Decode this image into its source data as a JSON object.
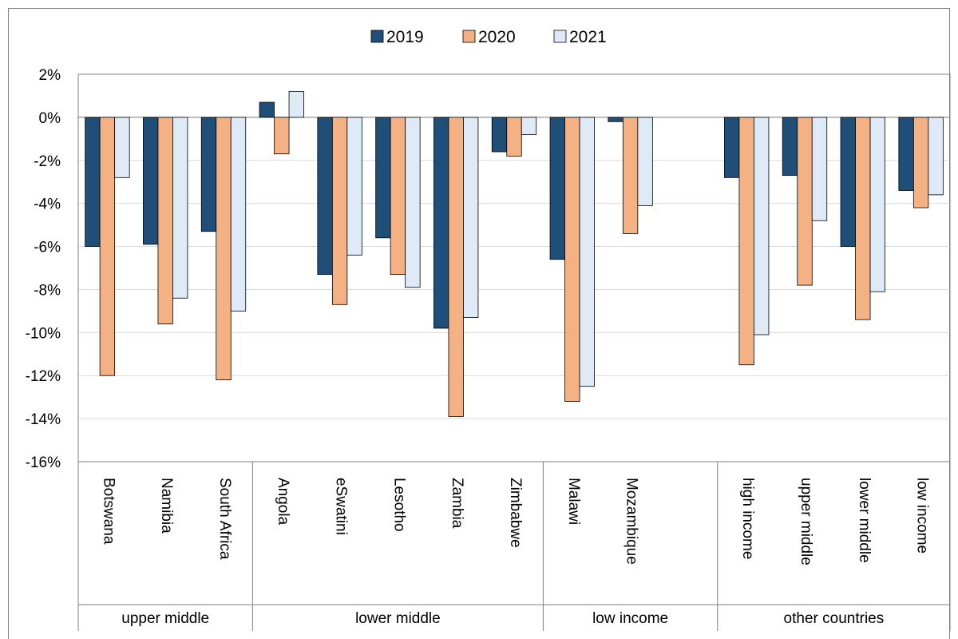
{
  "chart_data": {
    "type": "bar",
    "title": "",
    "xlabel": "",
    "ylabel": "",
    "ylim": [
      -16,
      2
    ],
    "y_ticks": [
      "2%",
      "0%",
      "-2%",
      "-4%",
      "-6%",
      "-8%",
      "-10%",
      "-12%",
      "-14%",
      "-16%"
    ],
    "y_tick_values": [
      2,
      0,
      -2,
      -4,
      -6,
      -8,
      -10,
      -12,
      -14,
      -16
    ],
    "grid": "horizontal",
    "legend_position": "top-center",
    "categories": [
      "Botswana",
      "Namibia",
      "South Africa",
      "Angola",
      "eSwatini",
      "Lesotho",
      "Zambia",
      "Zimbabwe",
      "Malawi",
      "Mozambique",
      "high income",
      "upper middle",
      "lower middle",
      "low income"
    ],
    "category_slots": [
      0,
      1,
      2,
      3,
      4,
      5,
      6,
      7,
      8,
      9,
      11,
      12,
      13,
      14
    ],
    "groups": [
      {
        "label": "upper middle",
        "start_slot": 0,
        "end_slot": 2
      },
      {
        "label": "lower middle",
        "start_slot": 3,
        "end_slot": 7
      },
      {
        "label": "low income",
        "start_slot": 8,
        "end_slot": 10
      },
      {
        "label": "other countries",
        "start_slot": 11,
        "end_slot": 14
      }
    ],
    "series": [
      {
        "name": "2019",
        "color": "#1f4e79",
        "values": [
          -6.0,
          -5.9,
          -5.3,
          0.7,
          -7.3,
          -5.6,
          -9.8,
          -1.6,
          -6.6,
          -0.2,
          -2.8,
          -2.7,
          -6.0,
          -3.4
        ]
      },
      {
        "name": "2020",
        "color": "#f4b183",
        "values": [
          -12.0,
          -9.6,
          -12.2,
          -1.7,
          -8.7,
          -7.3,
          -13.9,
          -1.8,
          -13.2,
          -5.4,
          -11.5,
          -7.8,
          -9.4,
          -4.2
        ]
      },
      {
        "name": "2021",
        "color": "#deebf7",
        "values": [
          -2.8,
          -8.4,
          -9.0,
          1.2,
          -6.4,
          -7.9,
          -9.3,
          -0.8,
          -12.5,
          -4.1,
          -10.1,
          -4.8,
          -8.1,
          -3.6
        ]
      }
    ]
  }
}
